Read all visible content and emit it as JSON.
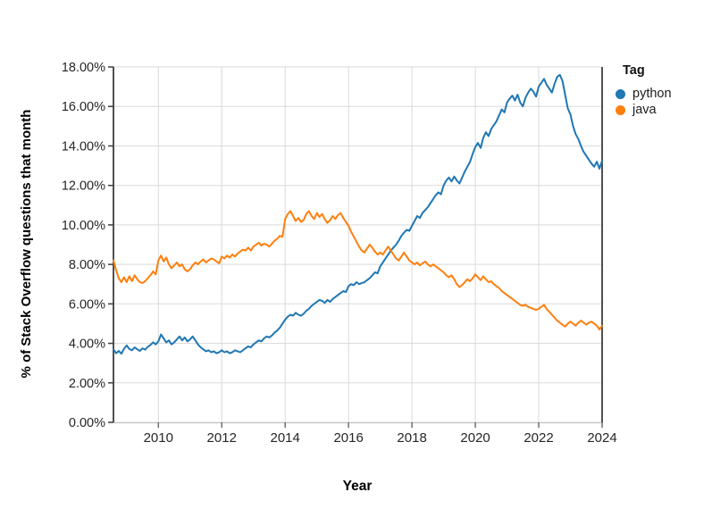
{
  "chart_data": {
    "type": "line",
    "title": "",
    "xlabel": "Year",
    "ylabel": "% of Stack Overflow questions that month",
    "legend_title": "Tag",
    "legend_position": "top-right",
    "grid": true,
    "x_interval": "monthly",
    "x_start": "2008-08",
    "x_end": "2024-01",
    "xlim": [
      2008.583,
      2024.0
    ],
    "ylim": [
      0,
      18
    ],
    "x_ticks": [
      "2010",
      "2012",
      "2014",
      "2016",
      "2018",
      "2020",
      "2022",
      "2024"
    ],
    "y_ticks": [
      "0.00%",
      "2.00%",
      "4.00%",
      "6.00%",
      "8.00%",
      "10.00%",
      "12.00%",
      "14.00%",
      "16.00%",
      "18.00%"
    ],
    "y_tick_values": [
      0,
      2,
      4,
      6,
      8,
      10,
      12,
      14,
      16,
      18
    ],
    "x_tick_values": [
      2010,
      2012,
      2014,
      2016,
      2018,
      2020,
      2022,
      2024
    ],
    "series": [
      {
        "name": "python",
        "color": "#1f77b4",
        "values": [
          3.7,
          3.5,
          3.62,
          3.48,
          3.72,
          3.9,
          3.72,
          3.65,
          3.8,
          3.7,
          3.62,
          3.75,
          3.68,
          3.82,
          3.92,
          4.05,
          3.95,
          4.1,
          4.45,
          4.25,
          4.05,
          4.15,
          3.95,
          4.05,
          4.2,
          4.35,
          4.15,
          4.3,
          4.1,
          4.2,
          4.35,
          4.15,
          3.95,
          3.8,
          3.7,
          3.6,
          3.65,
          3.55,
          3.6,
          3.5,
          3.55,
          3.65,
          3.55,
          3.6,
          3.5,
          3.55,
          3.65,
          3.6,
          3.55,
          3.65,
          3.75,
          3.85,
          3.8,
          3.95,
          4.05,
          4.15,
          4.1,
          4.25,
          4.35,
          4.3,
          4.4,
          4.55,
          4.65,
          4.8,
          5.0,
          5.2,
          5.35,
          5.45,
          5.4,
          5.55,
          5.45,
          5.4,
          5.5,
          5.65,
          5.75,
          5.9,
          6.0,
          6.1,
          6.2,
          6.15,
          6.05,
          6.2,
          6.1,
          6.25,
          6.35,
          6.45,
          6.55,
          6.65,
          6.6,
          6.9,
          7.0,
          6.95,
          7.1,
          7.0,
          7.05,
          7.1,
          7.2,
          7.3,
          7.45,
          7.6,
          7.55,
          7.9,
          8.1,
          8.3,
          8.5,
          8.7,
          8.85,
          9.0,
          9.2,
          9.45,
          9.6,
          9.75,
          9.7,
          9.95,
          10.2,
          10.45,
          10.35,
          10.6,
          10.75,
          10.9,
          11.1,
          11.3,
          11.5,
          11.65,
          11.55,
          12.0,
          12.25,
          12.4,
          12.2,
          12.45,
          12.25,
          12.1,
          12.4,
          12.7,
          12.95,
          13.2,
          13.6,
          13.95,
          14.15,
          13.9,
          14.4,
          14.7,
          14.5,
          14.85,
          15.05,
          15.25,
          15.55,
          15.85,
          15.7,
          16.2,
          16.4,
          16.55,
          16.3,
          16.6,
          16.2,
          16.0,
          16.45,
          16.7,
          16.9,
          16.75,
          16.5,
          17.0,
          17.2,
          17.4,
          17.1,
          16.9,
          16.7,
          17.15,
          17.5,
          17.6,
          17.3,
          16.6,
          15.9,
          15.6,
          15.0,
          14.6,
          14.35,
          14.0,
          13.7,
          13.5,
          13.3,
          13.1,
          12.95,
          13.2,
          12.85,
          13.25
        ]
      },
      {
        "name": "java",
        "color": "#ff7f0e",
        "values": [
          8.2,
          7.7,
          7.3,
          7.1,
          7.35,
          7.1,
          7.4,
          7.15,
          7.45,
          7.25,
          7.1,
          7.05,
          7.15,
          7.3,
          7.45,
          7.65,
          7.5,
          8.2,
          8.45,
          8.15,
          8.35,
          8.0,
          7.8,
          7.95,
          8.1,
          7.9,
          8.0,
          7.75,
          7.65,
          7.75,
          7.95,
          8.1,
          8.0,
          8.15,
          8.25,
          8.1,
          8.2,
          8.3,
          8.25,
          8.15,
          8.05,
          8.4,
          8.3,
          8.45,
          8.35,
          8.5,
          8.4,
          8.55,
          8.65,
          8.75,
          8.7,
          8.85,
          8.7,
          8.9,
          9.0,
          9.1,
          8.95,
          9.05,
          9.0,
          8.9,
          9.05,
          9.2,
          9.3,
          9.45,
          9.4,
          10.3,
          10.55,
          10.7,
          10.45,
          10.2,
          10.35,
          10.15,
          10.25,
          10.55,
          10.7,
          10.45,
          10.3,
          10.6,
          10.4,
          10.55,
          10.3,
          10.1,
          10.25,
          10.45,
          10.3,
          10.5,
          10.6,
          10.35,
          10.15,
          9.95,
          9.65,
          9.4,
          9.15,
          8.9,
          8.7,
          8.6,
          8.8,
          9.0,
          8.85,
          8.65,
          8.5,
          8.6,
          8.5,
          8.7,
          8.9,
          8.7,
          8.5,
          8.3,
          8.2,
          8.4,
          8.6,
          8.4,
          8.2,
          8.1,
          8.0,
          8.1,
          7.95,
          8.05,
          8.15,
          8.0,
          7.9,
          8.0,
          7.9,
          7.8,
          7.7,
          7.6,
          7.45,
          7.35,
          7.45,
          7.25,
          7.0,
          6.85,
          6.95,
          7.1,
          7.25,
          7.15,
          7.3,
          7.5,
          7.35,
          7.2,
          7.4,
          7.25,
          7.1,
          7.15,
          7.0,
          6.9,
          6.8,
          6.65,
          6.55,
          6.45,
          6.35,
          6.25,
          6.15,
          6.05,
          5.95,
          5.9,
          5.95,
          5.85,
          5.8,
          5.75,
          5.7,
          5.75,
          5.85,
          5.95,
          5.75,
          5.6,
          5.45,
          5.3,
          5.15,
          5.05,
          4.95,
          4.85,
          5.0,
          5.1,
          5.0,
          4.9,
          5.05,
          5.15,
          5.05,
          4.95,
          5.05,
          5.1,
          5.0,
          4.9,
          4.7,
          4.9
        ]
      }
    ],
    "style": {
      "grid_color": "#d9d9d9",
      "axis_dark_color": "#3d3d3d",
      "axis_bottom_color": "#c7c7c7",
      "x_tick_color": "#6e6e6e",
      "tick_label_color": "#262626"
    }
  }
}
